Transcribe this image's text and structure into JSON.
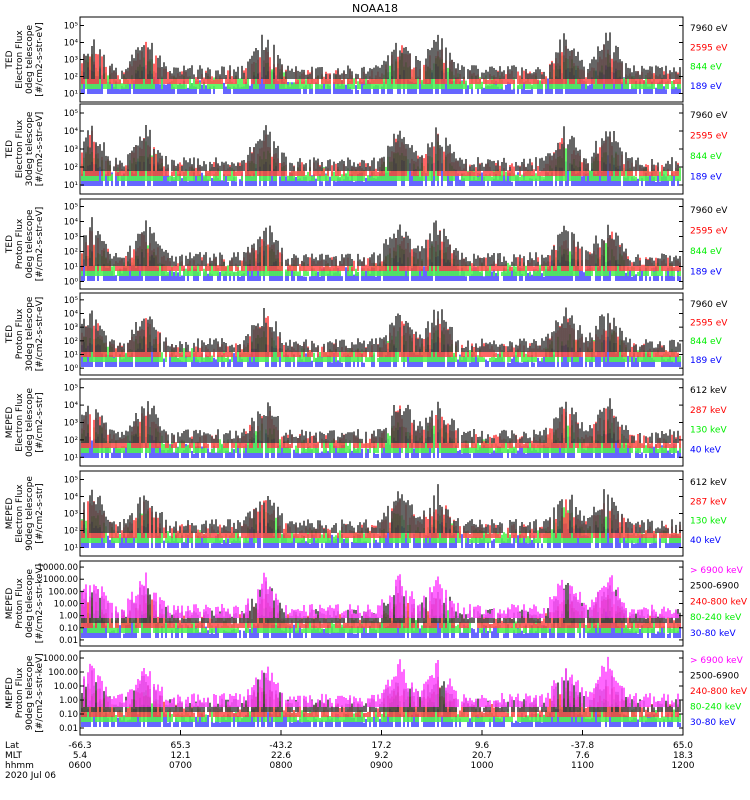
{
  "title": "NOAA18",
  "colors": {
    "black": "#000000",
    "red": "#ff0000",
    "green": "#00ee00",
    "blue": "#0000ff",
    "magenta": "#ff00ff"
  },
  "x_axis": {
    "row_labels": [
      "Lat",
      "MLT",
      "hhmm"
    ],
    "date": "2020 Jul 06",
    "ticks": [
      {
        "lat": "-66.3",
        "mlt": "5.4",
        "hhmm": "0600"
      },
      {
        "lat": "65.3",
        "mlt": "12.1",
        "hhmm": "0700"
      },
      {
        "lat": "-43.2",
        "mlt": "22.6",
        "hhmm": "0800"
      },
      {
        "lat": "17.2",
        "mlt": "9.2",
        "hhmm": "0900"
      },
      {
        "lat": "9.6",
        "mlt": "20.7",
        "hhmm": "1000"
      },
      {
        "lat": "-37.8",
        "mlt": "7.6",
        "hhmm": "1100"
      },
      {
        "lat": "65.0",
        "mlt": "18.3",
        "hhmm": "1200"
      }
    ]
  },
  "chart_data": [
    {
      "type": "scatter",
      "ylabel": [
        "TED",
        "Electron Flux",
        "0deg telescope",
        "[#/cm2-s-str-eV]"
      ],
      "yscale": "log",
      "yticks": [
        "10¹",
        "10²",
        "10³",
        "10⁴",
        "10⁵"
      ],
      "series": [
        {
          "name": "7960 eV",
          "color": "#000000"
        },
        {
          "name": "2595 eV",
          "color": "#ff0000"
        },
        {
          "name": "844 eV",
          "color": "#00ee00"
        },
        {
          "name": "189 eV",
          "color": "#0000ff"
        }
      ]
    },
    {
      "type": "scatter",
      "ylabel": [
        "TED",
        "Electron Flux",
        "30deg telescope",
        "[#/cm2-s-str-eV]"
      ],
      "yscale": "log",
      "yticks": [
        "10¹",
        "10²",
        "10³",
        "10⁴",
        "10⁵"
      ],
      "series": [
        {
          "name": "7960 eV",
          "color": "#000000"
        },
        {
          "name": "2595 eV",
          "color": "#ff0000"
        },
        {
          "name": "844 eV",
          "color": "#00ee00"
        },
        {
          "name": "189 eV",
          "color": "#0000ff"
        }
      ]
    },
    {
      "type": "scatter",
      "ylabel": [
        "TED",
        "Proton Flux",
        "0deg telescope",
        "[#/cm2-s-str-eV]"
      ],
      "yscale": "log",
      "yticks": [
        "10⁰",
        "10¹",
        "10²",
        "10³",
        "10⁴",
        "10⁵"
      ],
      "series": [
        {
          "name": "7960 eV",
          "color": "#000000"
        },
        {
          "name": "2595 eV",
          "color": "#ff0000"
        },
        {
          "name": "844 eV",
          "color": "#00ee00"
        },
        {
          "name": "189 eV",
          "color": "#0000ff"
        }
      ]
    },
    {
      "type": "scatter",
      "ylabel": [
        "TED",
        "Proton Flux",
        "30deg telescope",
        "[#/cm2-s-str-eV]"
      ],
      "yscale": "log",
      "yticks": [
        "10⁰",
        "10¹",
        "10²",
        "10³",
        "10⁴",
        "10⁵"
      ],
      "series": [
        {
          "name": "7960 eV",
          "color": "#000000"
        },
        {
          "name": "2595 eV",
          "color": "#ff0000"
        },
        {
          "name": "844 eV",
          "color": "#00ee00"
        },
        {
          "name": "189 eV",
          "color": "#0000ff"
        }
      ]
    },
    {
      "type": "scatter",
      "ylabel": [
        "MEPED",
        "Electron Flux",
        "0deg telescope",
        "[#/cm2-s-str]"
      ],
      "yscale": "log",
      "yticks": [
        "10¹",
        "10²",
        "10³",
        "10⁴",
        "10⁵"
      ],
      "series": [
        {
          "name": "612 keV",
          "color": "#000000"
        },
        {
          "name": "287 keV",
          "color": "#ff0000"
        },
        {
          "name": "130 keV",
          "color": "#00ee00"
        },
        {
          "name": "40 keV",
          "color": "#0000ff"
        }
      ]
    },
    {
      "type": "scatter",
      "ylabel": [
        "MEPED",
        "Electron Flux",
        "90deg telescope",
        "[#/cm2-s-str]"
      ],
      "yscale": "log",
      "yticks": [
        "10¹",
        "10²",
        "10³",
        "10⁴",
        "10⁵"
      ],
      "series": [
        {
          "name": "612 keV",
          "color": "#000000"
        },
        {
          "name": "287 keV",
          "color": "#ff0000"
        },
        {
          "name": "130 keV",
          "color": "#00ee00"
        },
        {
          "name": "40 keV",
          "color": "#0000ff"
        }
      ]
    },
    {
      "type": "scatter",
      "ylabel": [
        "MEPED",
        "Proton Flux",
        "0deg telescope",
        "[#/cm2-s-str-keV]"
      ],
      "yscale": "log",
      "yticks": [
        "0.01",
        "0.10",
        "1.00",
        "10.00",
        "100.00",
        "1000.00",
        "10000.00"
      ],
      "series": [
        {
          "name": "> 6900 keV",
          "color": "#ff00ff"
        },
        {
          "name": "2500-6900",
          "color": "#000000"
        },
        {
          "name": "240-800 keV",
          "color": "#ff0000"
        },
        {
          "name": "80-240 keV",
          "color": "#00ee00"
        },
        {
          "name": "30-80 keV",
          "color": "#0000ff"
        }
      ]
    },
    {
      "type": "scatter",
      "ylabel": [
        "MEPED",
        "Proton Flux",
        "90deg telescope",
        "[#/cm2-s-str-keV]"
      ],
      "yscale": "log",
      "yticks": [
        "0.01",
        "0.10",
        "1.00",
        "10.00",
        "100.00",
        "1000.00"
      ],
      "series": [
        {
          "name": "> 6900 keV",
          "color": "#ff00ff"
        },
        {
          "name": "2500-6900",
          "color": "#000000"
        },
        {
          "name": "240-800 keV",
          "color": "#ff0000"
        },
        {
          "name": "80-240 keV",
          "color": "#00ee00"
        },
        {
          "name": "30-80 keV",
          "color": "#0000ff"
        }
      ]
    }
  ]
}
